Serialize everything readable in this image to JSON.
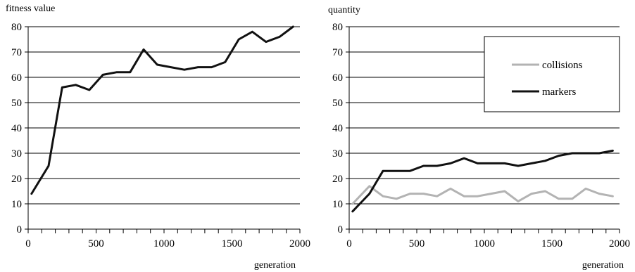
{
  "chart_data": [
    {
      "type": "line",
      "ylabel": "fitness value",
      "xlabel": "generation",
      "xlim": [
        0,
        2000
      ],
      "ylim": [
        0,
        80
      ],
      "xticks": [
        0,
        500,
        1000,
        1500,
        2000
      ],
      "yticks": [
        0,
        10,
        20,
        30,
        40,
        50,
        60,
        70,
        80
      ],
      "grid": "horizontal",
      "legend": null,
      "series": [
        {
          "color": "#111111",
          "x": [
            25,
            150,
            250,
            350,
            450,
            550,
            650,
            750,
            850,
            950,
            1050,
            1150,
            1250,
            1350,
            1450,
            1550,
            1650,
            1750,
            1850,
            1950
          ],
          "values": [
            14,
            25,
            56,
            57,
            55,
            61,
            62,
            62,
            71,
            65,
            64,
            63,
            64,
            64,
            66,
            75,
            78,
            74,
            76,
            80
          ]
        }
      ]
    },
    {
      "type": "line",
      "ylabel": "quantity",
      "xlabel": "generation",
      "xlim": [
        0,
        2000
      ],
      "ylim": [
        0,
        80
      ],
      "xticks": [
        0,
        500,
        1000,
        1500,
        2000
      ],
      "yticks": [
        0,
        10,
        20,
        30,
        40,
        50,
        60,
        70,
        80
      ],
      "grid": "horizontal",
      "legend": "top-right",
      "series": [
        {
          "name": "collisions",
          "color": "#b3b3b3",
          "x": [
            25,
            150,
            250,
            350,
            450,
            550,
            650,
            750,
            850,
            950,
            1050,
            1150,
            1250,
            1350,
            1450,
            1550,
            1650,
            1750,
            1850,
            1950
          ],
          "values": [
            10,
            17,
            13,
            12,
            14,
            14,
            13,
            16,
            13,
            13,
            14,
            15,
            11,
            14,
            15,
            12,
            12,
            16,
            14,
            13
          ]
        },
        {
          "name": "markers",
          "color": "#111111",
          "x": [
            25,
            150,
            250,
            350,
            450,
            550,
            650,
            750,
            850,
            950,
            1050,
            1150,
            1250,
            1350,
            1450,
            1550,
            1650,
            1750,
            1850,
            1950
          ],
          "values": [
            7,
            14,
            23,
            23,
            23,
            25,
            25,
            26,
            28,
            26,
            26,
            26,
            25,
            26,
            27,
            29,
            30,
            30,
            30,
            31
          ]
        }
      ]
    }
  ]
}
